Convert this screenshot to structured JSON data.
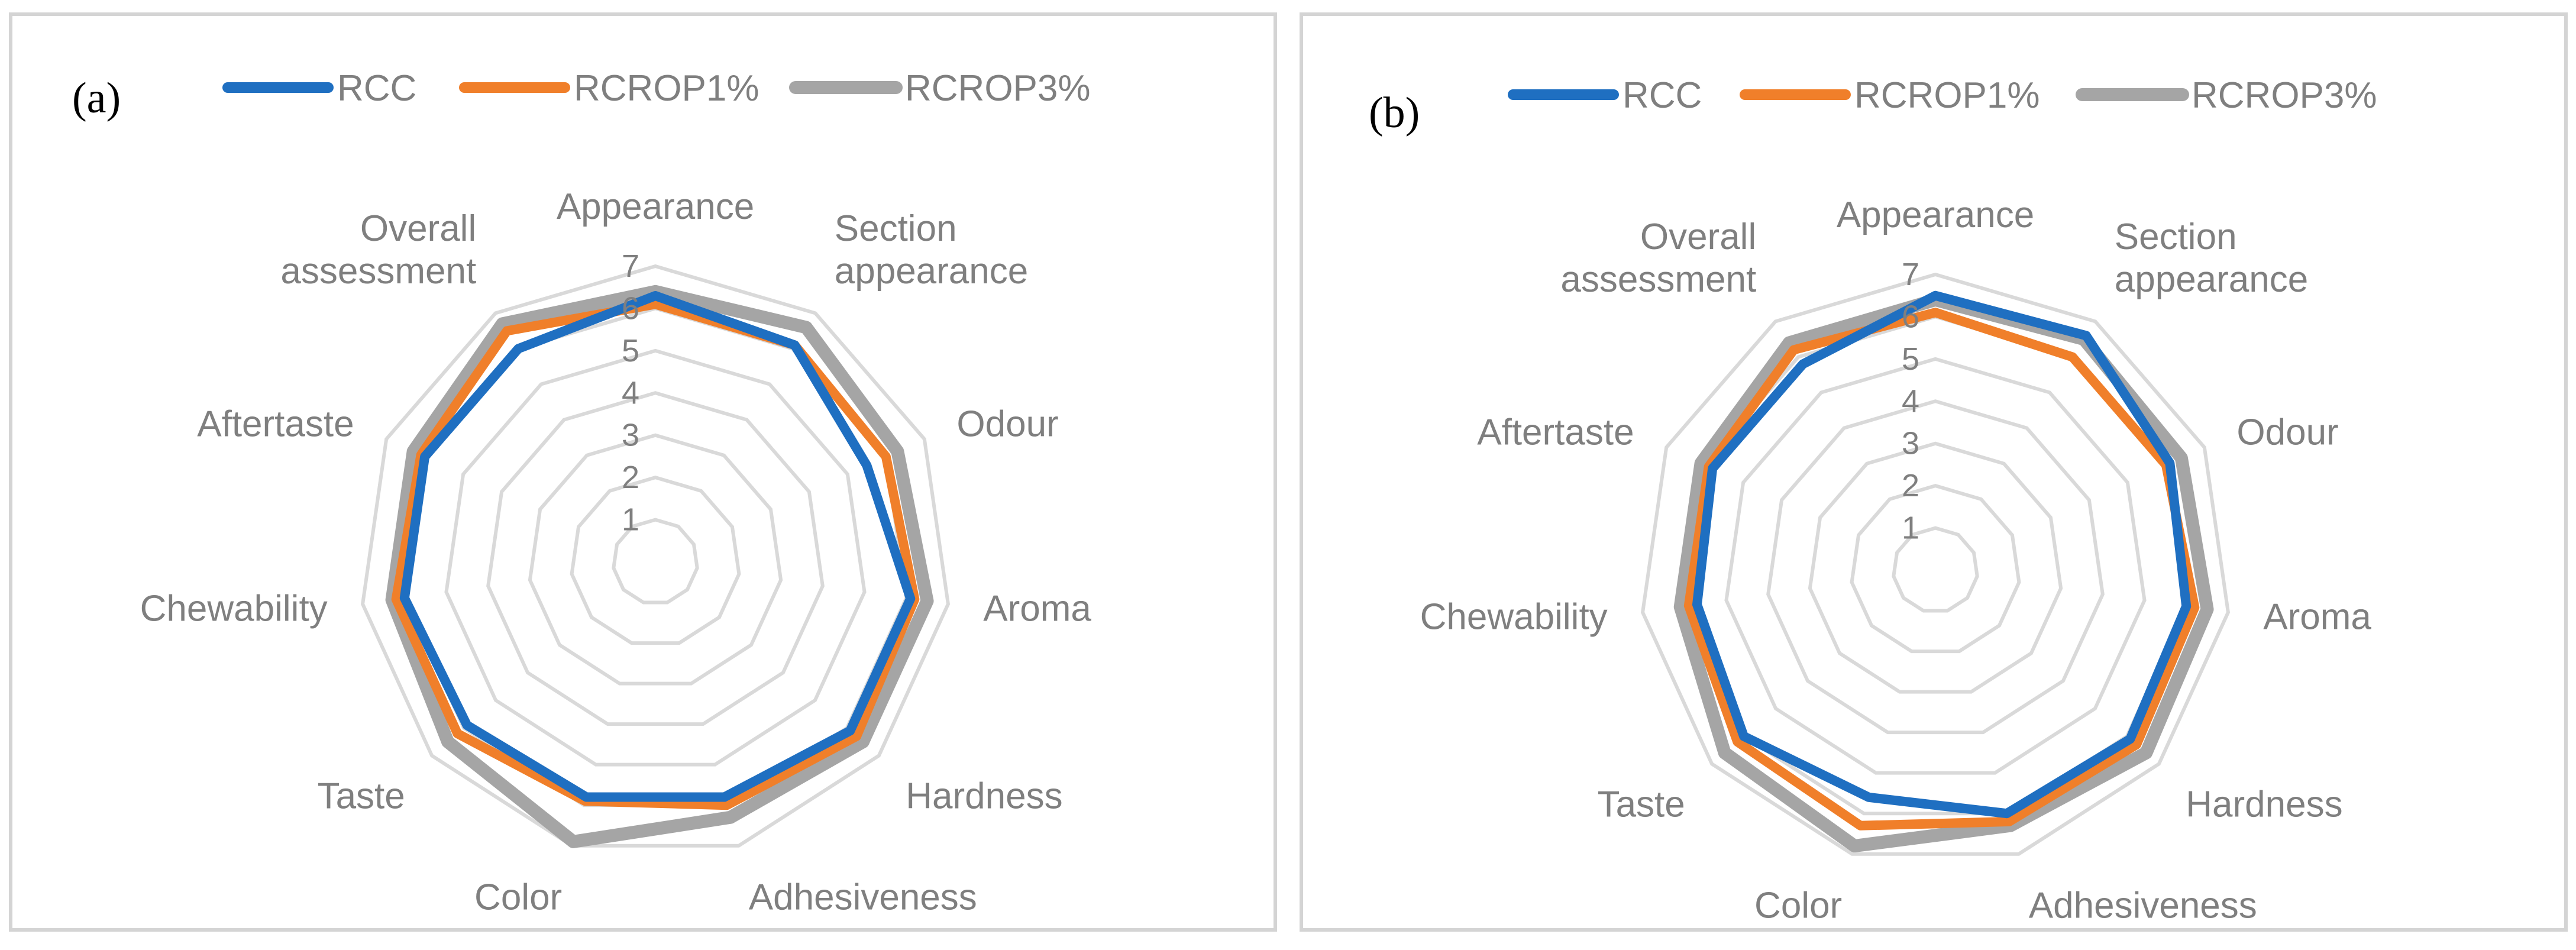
{
  "figure": {
    "colors": {
      "RCC": "#1f6fc1",
      "RCROP1%": "#f07f2a",
      "RCROP3%": "#a5a5a5",
      "grid": "#d9d9d9",
      "text": "#7f7f7f"
    }
  },
  "chart_data": [
    {
      "type": "radar",
      "panel_label": "(a)",
      "legend": [
        "RCC",
        "RCROP1%",
        "RCROP3%"
      ],
      "categories": [
        "Appearance",
        "Section appearance",
        "Odour",
        "Aroma",
        "Hardness",
        "Adhesiveness",
        "Color",
        "Taste",
        "Chewability",
        "Aftertaste",
        "Overall assessment"
      ],
      "category_lines": [
        [
          "Appearance"
        ],
        [
          "Section",
          "appearance"
        ],
        [
          "Odour"
        ],
        [
          "Aroma"
        ],
        [
          "Hardness"
        ],
        [
          "Adhesiveness"
        ],
        [
          "Color"
        ],
        [
          "Taste"
        ],
        [
          "Chewability"
        ],
        [
          "Aftertaste"
        ],
        [
          "Overall",
          "assessment"
        ]
      ],
      "ticks": [
        "1",
        "2",
        "3",
        "4",
        "5",
        "6",
        "7"
      ],
      "rmin": 0,
      "rmax": 7,
      "series": [
        {
          "name": "RCC",
          "values": [
            6.3,
            6.1,
            5.5,
            6.1,
            6.1,
            5.8,
            5.8,
            5.9,
            6.0,
            6.0,
            6.0
          ]
        },
        {
          "name": "RCROP1%",
          "values": [
            6.1,
            6.1,
            6.0,
            6.2,
            6.3,
            6.0,
            5.9,
            6.2,
            6.2,
            6.1,
            6.5
          ]
        },
        {
          "name": "RCROP3%",
          "values": [
            6.4,
            6.6,
            6.3,
            6.5,
            6.5,
            6.3,
            6.9,
            6.5,
            6.3,
            6.3,
            6.7
          ]
        }
      ]
    },
    {
      "type": "radar",
      "panel_label": "(b)",
      "legend": [
        "RCC",
        "RCROP1%",
        "RCROP3%"
      ],
      "categories": [
        "Appearance",
        "Section appearance",
        "Odour",
        "Aroma",
        "Hardness",
        "Adhesiveness",
        "Color",
        "Taste",
        "Chewability",
        "Aftertaste",
        "Overall assessment"
      ],
      "category_lines": [
        [
          "Appearance"
        ],
        [
          "Section",
          "appearance"
        ],
        [
          "Odour"
        ],
        [
          "Aroma"
        ],
        [
          "Hardness"
        ],
        [
          "Adhesiveness"
        ],
        [
          "Color"
        ],
        [
          "Taste"
        ],
        [
          "Chewability"
        ],
        [
          "Aftertaste"
        ],
        [
          "Overall",
          "assessment"
        ]
      ],
      "ticks": [
        "1",
        "2",
        "3",
        "4",
        "5",
        "6",
        "7"
      ],
      "rmin": 0,
      "rmax": 7,
      "series": [
        {
          "name": "RCC",
          "values": [
            6.5,
            6.6,
            6.1,
            6.0,
            6.1,
            6.0,
            5.6,
            6.0,
            5.7,
            5.8,
            5.8
          ]
        },
        {
          "name": "RCROP1%",
          "values": [
            6.1,
            6.0,
            6.0,
            6.2,
            6.3,
            6.2,
            6.3,
            6.2,
            5.9,
            5.9,
            6.2
          ]
        },
        {
          "name": "RCROP3%",
          "values": [
            6.4,
            6.5,
            6.4,
            6.5,
            6.6,
            6.3,
            6.8,
            6.6,
            6.1,
            6.1,
            6.4
          ]
        }
      ]
    }
  ]
}
